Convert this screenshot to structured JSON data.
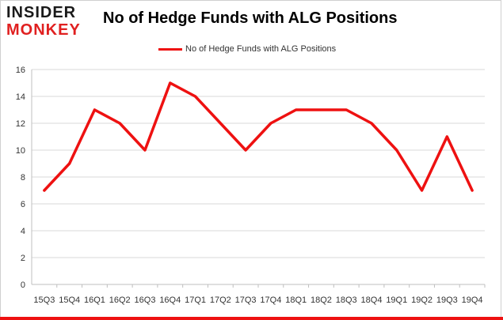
{
  "logo": {
    "line1": "INSIDER",
    "line2": "MONKEY"
  },
  "chart_data": {
    "type": "line",
    "title": "No of Hedge Funds with ALG Positions",
    "xlabel": "",
    "ylabel": "",
    "categories": [
      "15Q3",
      "15Q4",
      "16Q1",
      "16Q2",
      "16Q3",
      "16Q4",
      "17Q1",
      "17Q2",
      "17Q3",
      "17Q4",
      "18Q1",
      "18Q2",
      "18Q3",
      "18Q4",
      "19Q1",
      "19Q2",
      "19Q3",
      "19Q4"
    ],
    "series": [
      {
        "name": "No of Hedge Funds with ALG Positions",
        "color": "#ee1111",
        "values": [
          7,
          9,
          13,
          12,
          10,
          15,
          14,
          12,
          10,
          12,
          13,
          13,
          13,
          12,
          10,
          7,
          11,
          7
        ]
      }
    ],
    "ylim": [
      0,
      16
    ],
    "yticks": [
      0,
      2,
      4,
      6,
      8,
      10,
      12,
      14,
      16
    ],
    "grid": true,
    "legend_position": "top-center"
  }
}
